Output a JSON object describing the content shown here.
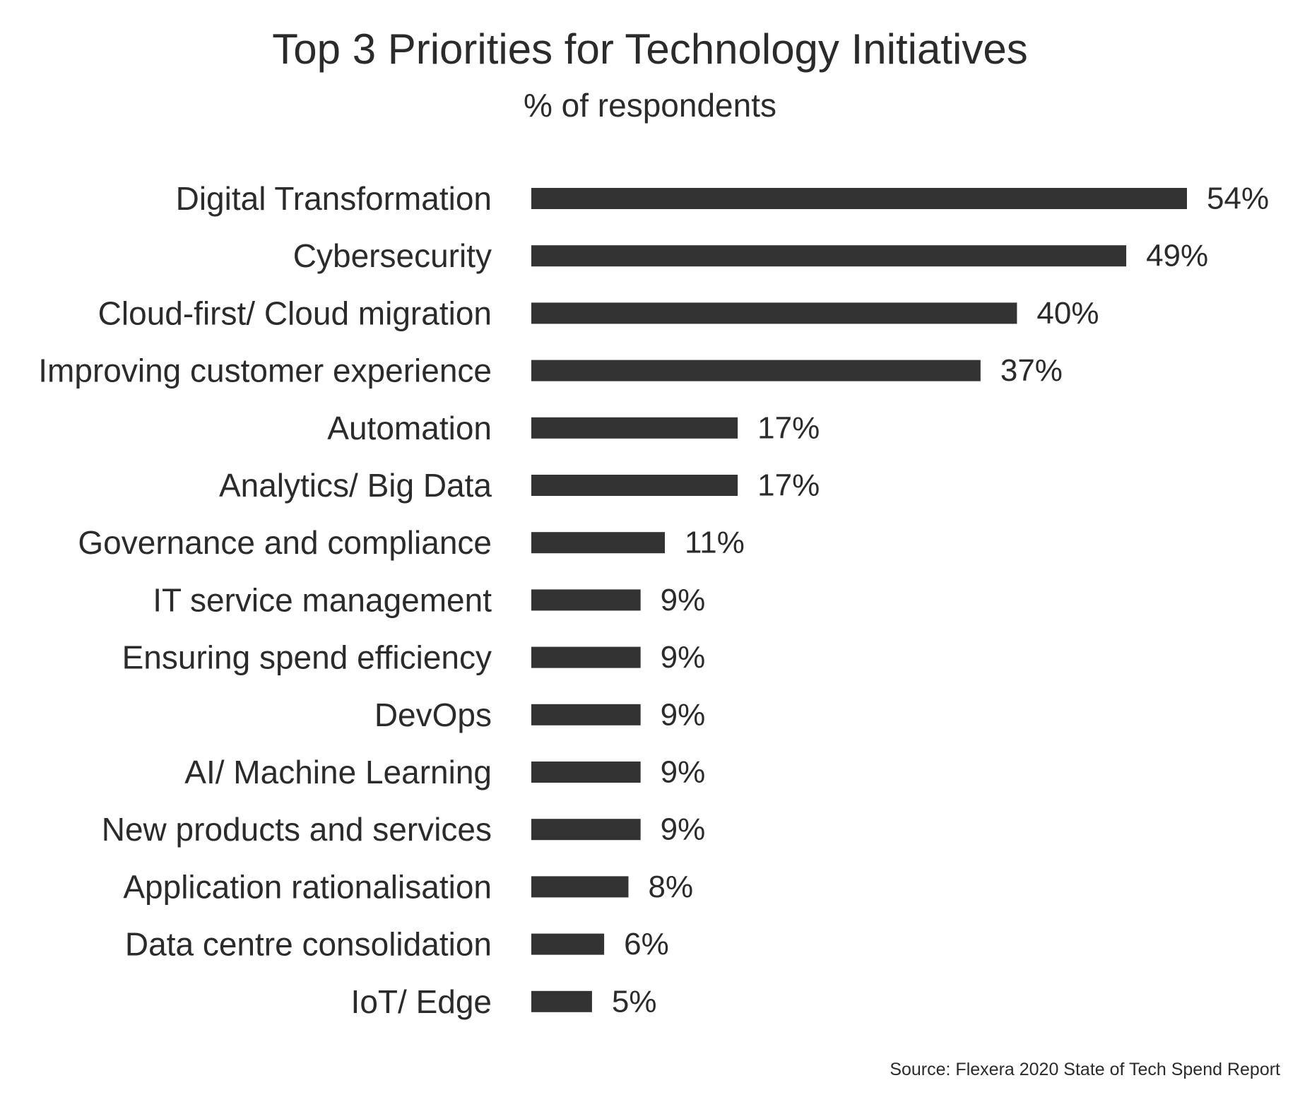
{
  "chart_data": {
    "type": "bar",
    "orientation": "horizontal",
    "title": "Top 3 Priorities for Technology Initiatives",
    "subtitle": "% of respondents",
    "categories": [
      "Digital Transformation",
      "Cybersecurity",
      "Cloud-first/ Cloud migration",
      "Improving customer experience",
      "Automation",
      "Analytics/ Big Data",
      "Governance and compliance",
      "IT service management",
      "Ensuring spend efficiency",
      "DevOps",
      "AI/ Machine Learning",
      "New products and services",
      "Application rationalisation",
      "Data centre consolidation",
      "IoT/ Edge"
    ],
    "values": [
      54,
      49,
      40,
      37,
      17,
      17,
      11,
      9,
      9,
      9,
      9,
      9,
      8,
      6,
      5
    ],
    "data_labels": [
      "54%",
      "49%",
      "40%",
      "37%",
      "17%",
      "17%",
      "11%",
      "9%",
      "9%",
      "9%",
      "9%",
      "9%",
      "8%",
      "6%",
      "5%"
    ],
    "xlim": [
      0,
      54
    ],
    "grid": false,
    "bar_color": "#333333",
    "source": "Source: Flexera 2020 State of Tech Spend Report"
  }
}
